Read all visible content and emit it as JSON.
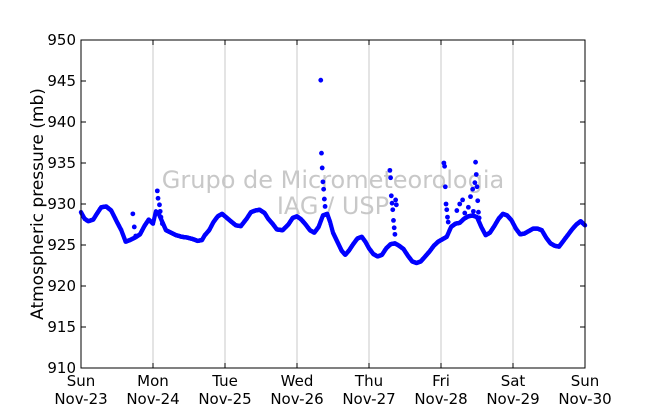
{
  "chart_data": {
    "type": "scatter",
    "title": "",
    "ylabel": "Atmospheric pressure (mb)",
    "xlabel": "",
    "ylim": [
      910,
      950
    ],
    "yticks": [
      910,
      915,
      920,
      925,
      930,
      935,
      940,
      945,
      950
    ],
    "xlim": [
      "Nov-23",
      "Nov-30"
    ],
    "xticks": [
      {
        "day": "Sun",
        "date": "Nov-23"
      },
      {
        "day": "Mon",
        "date": "Nov-24"
      },
      {
        "day": "Tue",
        "date": "Nov-25"
      },
      {
        "day": "Wed",
        "date": "Nov-26"
      },
      {
        "day": "Thu",
        "date": "Nov-27"
      },
      {
        "day": "Fri",
        "date": "Nov-28"
      },
      {
        "day": "Sat",
        "date": "Nov-29"
      },
      {
        "day": "Sun",
        "date": "Nov-30"
      }
    ],
    "grid": "vertical",
    "marker_color": "#0000ff",
    "watermark": [
      "Grupo de Micrometeorologia",
      "IAG / USP"
    ],
    "x_unit": "days since Nov-23 00:00",
    "series_main": [
      [
        0.0,
        929.0
      ],
      [
        0.05,
        928.2
      ],
      [
        0.1,
        927.9
      ],
      [
        0.17,
        928.1
      ],
      [
        0.22,
        928.8
      ],
      [
        0.28,
        929.6
      ],
      [
        0.35,
        929.7
      ],
      [
        0.42,
        929.2
      ],
      [
        0.5,
        927.8
      ],
      [
        0.56,
        926.8
      ],
      [
        0.62,
        925.4
      ],
      [
        0.68,
        925.6
      ],
      [
        0.75,
        925.9
      ],
      [
        0.82,
        926.3
      ],
      [
        0.88,
        927.3
      ],
      [
        0.94,
        928.1
      ],
      [
        1.0,
        927.6
      ],
      [
        1.04,
        929.1
      ],
      [
        1.08,
        928.8
      ],
      [
        1.12,
        928.0
      ],
      [
        1.18,
        926.8
      ],
      [
        1.25,
        926.5
      ],
      [
        1.32,
        926.2
      ],
      [
        1.4,
        926.0
      ],
      [
        1.48,
        925.9
      ],
      [
        1.56,
        925.7
      ],
      [
        1.62,
        925.5
      ],
      [
        1.68,
        925.6
      ],
      [
        1.72,
        926.2
      ],
      [
        1.78,
        926.8
      ],
      [
        1.84,
        927.8
      ],
      [
        1.9,
        928.5
      ],
      [
        1.96,
        928.8
      ],
      [
        2.0,
        928.5
      ],
      [
        2.08,
        927.9
      ],
      [
        2.15,
        927.4
      ],
      [
        2.22,
        927.3
      ],
      [
        2.3,
        928.2
      ],
      [
        2.36,
        929.0
      ],
      [
        2.42,
        929.2
      ],
      [
        2.48,
        929.3
      ],
      [
        2.55,
        928.9
      ],
      [
        2.6,
        928.2
      ],
      [
        2.66,
        927.6
      ],
      [
        2.72,
        926.9
      ],
      [
        2.8,
        926.8
      ],
      [
        2.88,
        927.5
      ],
      [
        2.94,
        928.3
      ],
      [
        3.0,
        928.5
      ],
      [
        3.06,
        928.1
      ],
      [
        3.12,
        927.5
      ],
      [
        3.18,
        926.8
      ],
      [
        3.24,
        926.5
      ],
      [
        3.3,
        927.2
      ],
      [
        3.36,
        928.6
      ],
      [
        3.42,
        928.8
      ],
      [
        3.46,
        927.8
      ],
      [
        3.5,
        926.5
      ],
      [
        3.56,
        925.4
      ],
      [
        3.62,
        924.3
      ],
      [
        3.67,
        923.8
      ],
      [
        3.72,
        924.3
      ],
      [
        3.78,
        925.1
      ],
      [
        3.84,
        925.8
      ],
      [
        3.9,
        926.0
      ],
      [
        3.95,
        925.4
      ],
      [
        4.0,
        924.6
      ],
      [
        4.06,
        923.9
      ],
      [
        4.12,
        923.6
      ],
      [
        4.18,
        923.8
      ],
      [
        4.24,
        924.6
      ],
      [
        4.3,
        925.1
      ],
      [
        4.36,
        925.2
      ],
      [
        4.42,
        924.9
      ],
      [
        4.48,
        924.5
      ],
      [
        4.54,
        923.7
      ],
      [
        4.6,
        923.0
      ],
      [
        4.66,
        922.8
      ],
      [
        4.72,
        923.0
      ],
      [
        4.78,
        923.6
      ],
      [
        4.84,
        924.2
      ],
      [
        4.9,
        924.9
      ],
      [
        4.96,
        925.4
      ],
      [
        5.02,
        925.7
      ],
      [
        5.08,
        926.0
      ],
      [
        5.14,
        927.2
      ],
      [
        5.2,
        927.6
      ],
      [
        5.26,
        927.7
      ],
      [
        5.32,
        928.2
      ],
      [
        5.38,
        928.5
      ],
      [
        5.44,
        928.6
      ],
      [
        5.5,
        928.4
      ],
      [
        5.56,
        927.2
      ],
      [
        5.62,
        926.2
      ],
      [
        5.68,
        926.5
      ],
      [
        5.74,
        927.3
      ],
      [
        5.8,
        928.2
      ],
      [
        5.86,
        928.8
      ],
      [
        5.92,
        928.6
      ],
      [
        5.98,
        928.0
      ],
      [
        6.04,
        927.0
      ],
      [
        6.1,
        926.3
      ],
      [
        6.16,
        926.4
      ],
      [
        6.22,
        926.7
      ],
      [
        6.28,
        927.0
      ],
      [
        6.34,
        927.0
      ],
      [
        6.4,
        926.8
      ],
      [
        6.46,
        925.9
      ],
      [
        6.52,
        925.2
      ],
      [
        6.58,
        924.9
      ],
      [
        6.64,
        924.8
      ],
      [
        6.7,
        925.5
      ],
      [
        6.76,
        926.2
      ],
      [
        6.82,
        926.9
      ],
      [
        6.88,
        927.5
      ],
      [
        6.94,
        927.9
      ],
      [
        7.0,
        927.4
      ]
    ],
    "series_spikes": [
      [
        0.72,
        928.8
      ],
      [
        0.74,
        927.2
      ],
      [
        0.76,
        926.1
      ],
      [
        1.06,
        931.6
      ],
      [
        1.07,
        930.7
      ],
      [
        1.09,
        929.9
      ],
      [
        1.1,
        929.1
      ],
      [
        1.11,
        928.4
      ],
      [
        1.13,
        927.6
      ],
      [
        3.33,
        945.1
      ],
      [
        3.34,
        936.2
      ],
      [
        3.35,
        934.4
      ],
      [
        3.36,
        932.7
      ],
      [
        3.37,
        931.8
      ],
      [
        3.38,
        930.6
      ],
      [
        3.39,
        929.7
      ],
      [
        4.29,
        934.1
      ],
      [
        4.3,
        933.2
      ],
      [
        4.31,
        931.0
      ],
      [
        4.32,
        930.1
      ],
      [
        4.33,
        929.3
      ],
      [
        4.34,
        928.0
      ],
      [
        4.35,
        927.1
      ],
      [
        4.36,
        926.3
      ],
      [
        4.37,
        930.5
      ],
      [
        4.38,
        929.9
      ],
      [
        5.04,
        935.0
      ],
      [
        5.05,
        934.6
      ],
      [
        5.06,
        932.1
      ],
      [
        5.07,
        930.0
      ],
      [
        5.08,
        929.3
      ],
      [
        5.09,
        928.4
      ],
      [
        5.1,
        927.8
      ],
      [
        5.22,
        929.2
      ],
      [
        5.26,
        930.0
      ],
      [
        5.3,
        930.5
      ],
      [
        5.38,
        929.6
      ],
      [
        5.41,
        930.9
      ],
      [
        5.44,
        931.8
      ],
      [
        5.47,
        932.6
      ],
      [
        5.48,
        935.1
      ],
      [
        5.49,
        933.6
      ],
      [
        5.5,
        932.1
      ],
      [
        5.51,
        930.4
      ],
      [
        5.52,
        929.0
      ],
      [
        5.53,
        928.3
      ],
      [
        5.45,
        929.1
      ],
      [
        5.33,
        928.9
      ]
    ]
  }
}
